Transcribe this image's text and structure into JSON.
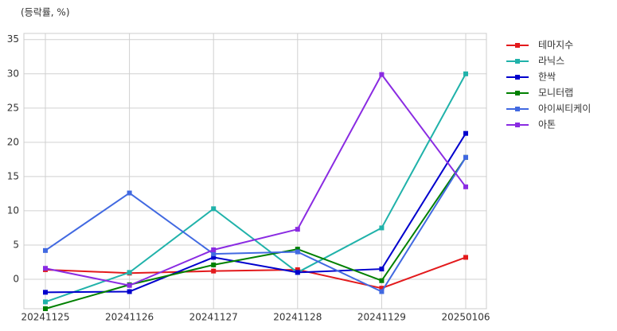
{
  "chart_data": {
    "type": "line",
    "ylabel": "(등락률, %)",
    "categories": [
      "20241125",
      "20241126",
      "20241127",
      "20241128",
      "20241129",
      "20250106"
    ],
    "series": [
      {
        "name": "테마지수",
        "color": "#e31a1c",
        "values": [
          1.4,
          0.9,
          1.2,
          1.4,
          -1.3,
          3.2
        ]
      },
      {
        "name": "라닉스",
        "color": "#20b2aa",
        "values": [
          -3.3,
          1.0,
          10.3,
          1.0,
          7.5,
          30.0
        ]
      },
      {
        "name": "한싹",
        "color": "#0000cd",
        "values": [
          -1.9,
          -1.8,
          3.2,
          1.0,
          1.5,
          21.3
        ]
      },
      {
        "name": "모니터랩",
        "color": "#008000",
        "values": [
          -4.3,
          -0.8,
          2.1,
          4.4,
          -0.2,
          17.8
        ]
      },
      {
        "name": "아이씨티케이",
        "color": "#4169e1",
        "values": [
          4.2,
          12.6,
          3.7,
          4.0,
          -1.8,
          17.8
        ]
      },
      {
        "name": "아톤",
        "color": "#8a2be2",
        "values": [
          1.6,
          -0.9,
          4.3,
          7.3,
          29.9,
          13.5
        ]
      }
    ],
    "ylim": [
      -4.3,
      35.9
    ],
    "yticks": [
      0,
      5,
      10,
      15,
      20,
      25,
      30,
      35
    ],
    "grid": true
  }
}
